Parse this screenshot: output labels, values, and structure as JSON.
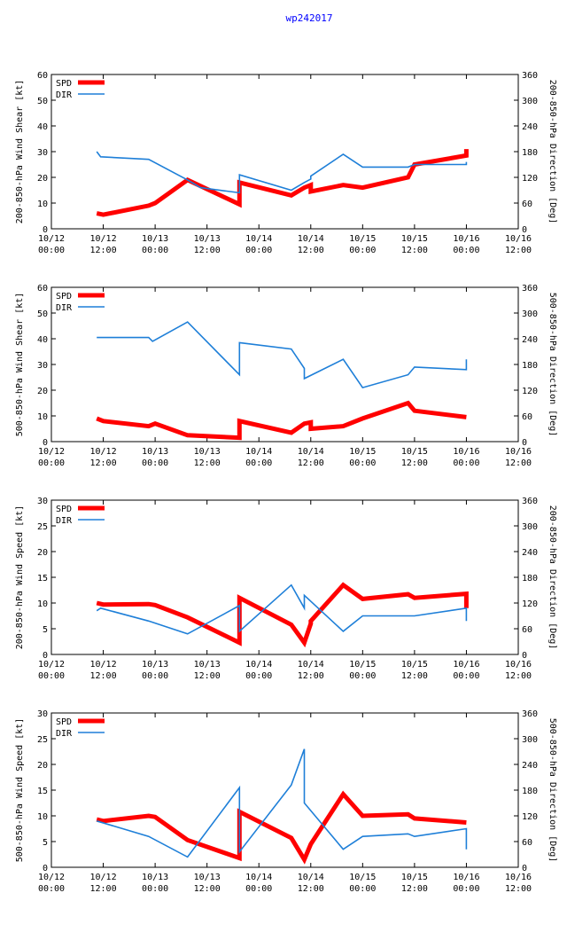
{
  "page": {
    "title": "wp242017"
  },
  "colors": {
    "spd": "#ff0000",
    "dir": "#1e7fd8",
    "axis": "#000000"
  },
  "legend": {
    "spd": "SPD",
    "dir": "DIR"
  },
  "chart_data": [
    {
      "type": "line",
      "ylabel_left": "200-850-hPa Wind Shear [kt]",
      "ylabel_right": "200-850-hPa Direction [Deg]",
      "ylim_left": [
        0,
        60
      ],
      "yticks_left": [
        0,
        10,
        20,
        30,
        40,
        50,
        60
      ],
      "ylim_right": [
        0,
        360
      ],
      "yticks_right": [
        0,
        60,
        120,
        180,
        240,
        300,
        360
      ],
      "xlim": [
        0,
        10
      ],
      "xtick_labels": [
        [
          "10/12",
          "00:00"
        ],
        [
          "10/12",
          "12:00"
        ],
        [
          "10/13",
          "00:00"
        ],
        [
          "10/13",
          "12:00"
        ],
        [
          "10/14",
          "00:00"
        ],
        [
          "10/14",
          "12:00"
        ],
        [
          "10/15",
          "00:00"
        ],
        [
          "10/15",
          "12:00"
        ],
        [
          "10/16",
          "00:00"
        ],
        [
          "10/16",
          "12:00"
        ]
      ],
      "series": [
        {
          "name": "SPD",
          "axis": "left",
          "x": [
            0.875,
            1.0,
            1.875,
            2.0,
            2.625,
            3.625,
            3.625,
            4.625,
            4.875,
            5.0,
            5.0,
            5.625,
            6.0,
            6.875,
            7.0,
            8.0,
            8.0
          ],
          "y": [
            6,
            5.5,
            9,
            10,
            19,
            9.5,
            18,
            13,
            16,
            17,
            14.5,
            17,
            16,
            20,
            25,
            28.5,
            31
          ]
        },
        {
          "name": "DIR",
          "axis": "right",
          "x": [
            0.875,
            0.95,
            1.875,
            2.625,
            2.875,
            3.625,
            3.625,
            4.625,
            4.875,
            5.0,
            5.0,
            5.625,
            6.0,
            6.875,
            7.0,
            8.0,
            8.0
          ],
          "y": [
            180,
            168,
            162,
            114,
            96,
            84,
            126,
            90,
            108,
            116,
            123,
            174,
            144,
            144,
            150,
            150,
            156
          ]
        }
      ]
    },
    {
      "type": "line",
      "ylabel_left": "500-850-hPa Wind Shear [kt]",
      "ylabel_right": "500-850-hPa Direction [Deg]",
      "ylim_left": [
        0,
        60
      ],
      "yticks_left": [
        0,
        10,
        20,
        30,
        40,
        50,
        60
      ],
      "ylim_right": [
        0,
        360
      ],
      "yticks_right": [
        0,
        60,
        120,
        180,
        240,
        300,
        360
      ],
      "xlim": [
        0,
        10
      ],
      "xtick_labels": [
        [
          "10/12",
          "00:00"
        ],
        [
          "10/12",
          "12:00"
        ],
        [
          "10/13",
          "00:00"
        ],
        [
          "10/13",
          "12:00"
        ],
        [
          "10/14",
          "00:00"
        ],
        [
          "10/14",
          "12:00"
        ],
        [
          "10/15",
          "00:00"
        ],
        [
          "10/15",
          "12:00"
        ],
        [
          "10/16",
          "00:00"
        ],
        [
          "10/16",
          "12:00"
        ]
      ],
      "series": [
        {
          "name": "SPD",
          "axis": "left",
          "x": [
            0.875,
            1.0,
            1.875,
            2.0,
            2.625,
            3.625,
            3.625,
            4.625,
            4.875,
            5.0,
            5.0,
            5.625,
            6.0,
            6.875,
            7.0,
            8.0
          ],
          "y": [
            9,
            8,
            6,
            7,
            2.5,
            1.5,
            8,
            3.5,
            7,
            7.5,
            5,
            6,
            9,
            15,
            12,
            9.5
          ]
        },
        {
          "name": "DIR",
          "axis": "left_dir",
          "axis_label": "right",
          "x": [
            0.875,
            1.875,
            1.95,
            2.625,
            3.625,
            3.625,
            4.625,
            4.875,
            4.875,
            5.625,
            6.0,
            6.875,
            7.0,
            8.0,
            8.0
          ],
          "y": [
            243,
            243,
            234,
            279,
            156,
            231,
            216,
            171,
            147,
            192,
            126,
            156,
            174,
            168,
            192
          ]
        }
      ]
    },
    {
      "type": "line",
      "ylabel_left": "200-850-hPa Wind Speed [kt]",
      "ylabel_right": "200-850-hPa Direction [Deg]",
      "ylim_left": [
        0,
        30
      ],
      "yticks_left": [
        0,
        5,
        10,
        15,
        20,
        25,
        30
      ],
      "ylim_right": [
        0,
        360
      ],
      "yticks_right": [
        0,
        60,
        120,
        180,
        240,
        300,
        360
      ],
      "xlim": [
        0,
        10
      ],
      "xtick_labels": [
        [
          "10/12",
          "00:00"
        ],
        [
          "10/12",
          "12:00"
        ],
        [
          "10/13",
          "00:00"
        ],
        [
          "10/13",
          "12:00"
        ],
        [
          "10/14",
          "00:00"
        ],
        [
          "10/14",
          "12:00"
        ],
        [
          "10/15",
          "00:00"
        ],
        [
          "10/15",
          "12:00"
        ],
        [
          "10/16",
          "00:00"
        ],
        [
          "10/16",
          "12:00"
        ]
      ],
      "series": [
        {
          "name": "SPD",
          "axis": "left",
          "x": [
            0.875,
            1.0,
            1.875,
            2.0,
            2.625,
            3.625,
            3.625,
            4.625,
            4.875,
            5.0,
            5.0,
            5.625,
            6.0,
            6.875,
            7.0,
            8.0,
            8.0
          ],
          "y": [
            10,
            9.7,
            9.8,
            9.6,
            7.2,
            2.3,
            11,
            5.8,
            2.3,
            6,
            6.5,
            13.5,
            10.8,
            11.7,
            11,
            11.8,
            9
          ]
        },
        {
          "name": "DIR",
          "axis": "right",
          "x": [
            0.875,
            0.95,
            1.875,
            2.625,
            3.625,
            3.625,
            4.625,
            4.875,
            4.875,
            5.625,
            6.0,
            6.875,
            7.0,
            8.0,
            8.0
          ],
          "y": [
            102,
            108,
            78,
            48,
            114,
            54,
            162,
            108,
            138,
            54,
            90,
            90,
            90,
            108,
            78
          ]
        }
      ]
    },
    {
      "type": "line",
      "ylabel_left": "500-850-hPa Wind Speed [kt]",
      "ylabel_right": "500-850-hPa Direction [Deg]",
      "ylim_left": [
        0,
        30
      ],
      "yticks_left": [
        0,
        5,
        10,
        15,
        20,
        25,
        30
      ],
      "ylim_right": [
        0,
        360
      ],
      "yticks_right": [
        0,
        60,
        120,
        180,
        240,
        300,
        360
      ],
      "xlim": [
        0,
        10
      ],
      "xtick_labels": [
        [
          "10/12",
          "00:00"
        ],
        [
          "10/12",
          "12:00"
        ],
        [
          "10/13",
          "00:00"
        ],
        [
          "10/13",
          "12:00"
        ],
        [
          "10/14",
          "00:00"
        ],
        [
          "10/14",
          "12:00"
        ],
        [
          "10/15",
          "00:00"
        ],
        [
          "10/15",
          "12:00"
        ],
        [
          "10/16",
          "00:00"
        ],
        [
          "10/16",
          "12:00"
        ]
      ],
      "series": [
        {
          "name": "SPD",
          "axis": "left",
          "x": [
            0.875,
            1.0,
            1.875,
            2.0,
            2.625,
            3.625,
            3.625,
            4.625,
            4.875,
            5.0,
            5.0,
            5.625,
            6.0,
            6.875,
            7.0,
            8.0
          ],
          "y": [
            9.3,
            9,
            10,
            9.8,
            5.3,
            1.8,
            10.8,
            5.7,
            1.5,
            4.5,
            4.5,
            14.2,
            10,
            10.3,
            9.5,
            8.7
          ]
        },
        {
          "name": "DIR",
          "axis": "right",
          "x": [
            0.875,
            1.875,
            2.625,
            3.625,
            3.625,
            4.625,
            4.875,
            4.875,
            5.625,
            6.0,
            6.875,
            7.0,
            8.0,
            8.0
          ],
          "y": [
            108,
            72,
            24,
            186,
            36,
            192,
            276,
            150,
            42,
            72,
            78,
            72,
            90,
            42
          ]
        }
      ]
    }
  ]
}
